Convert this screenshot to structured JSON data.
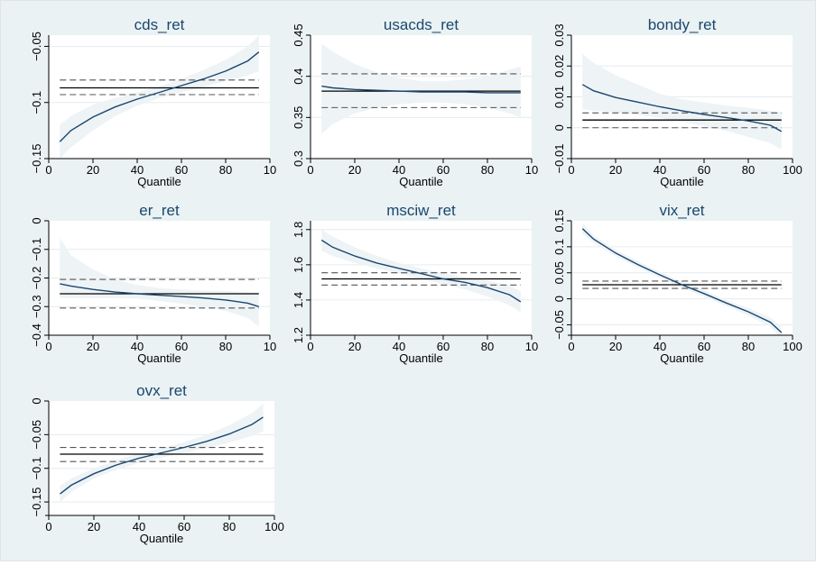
{
  "figure": {
    "x_label": "Quantile",
    "colors": {
      "background": "#eaf2f3",
      "plot_area": "#ffffff",
      "title": "#1a476f",
      "curve": "#1a476f",
      "ci_band": "#eef3f6",
      "ols_line": "#000000",
      "ols_ci": "#555555",
      "grid": "#e6ecef"
    }
  },
  "chart_data": [
    {
      "type": "line",
      "title": "cds_ret",
      "xlabel": "Quantile",
      "x_ticks": [
        "0",
        "20",
        "40",
        "60",
        "80",
        "10"
      ],
      "xlim": [
        0,
        100
      ],
      "y_ticks": [
        "−0.15",
        "−0.1",
        "−0.05"
      ],
      "y_tick_values": [
        -0.15,
        -0.1,
        -0.05
      ],
      "ylim": [
        -0.15,
        -0.04
      ],
      "grid": true,
      "quantile": {
        "x": [
          5,
          10,
          20,
          30,
          40,
          50,
          60,
          70,
          80,
          90,
          95
        ],
        "y": [
          -0.135,
          -0.125,
          -0.113,
          -0.104,
          -0.097,
          -0.091,
          -0.085,
          -0.079,
          -0.072,
          -0.063,
          -0.055
        ]
      },
      "ci_band": {
        "lower": [
          -0.15,
          -0.14,
          -0.125,
          -0.112,
          -0.103,
          -0.096,
          -0.091,
          -0.086,
          -0.081,
          -0.076,
          -0.072
        ],
        "upper": [
          -0.12,
          -0.112,
          -0.102,
          -0.096,
          -0.091,
          -0.086,
          -0.079,
          -0.071,
          -0.062,
          -0.05,
          -0.04
        ]
      },
      "ols": {
        "coef": -0.087,
        "ci": [
          -0.093,
          -0.08
        ]
      }
    },
    {
      "type": "line",
      "title": "usacds_ret",
      "xlabel": "Quantile",
      "x_ticks": [
        "0",
        "20",
        "40",
        "60",
        "80",
        "10"
      ],
      "xlim": [
        0,
        100
      ],
      "y_ticks": [
        "0.3",
        "0.35",
        "0.4",
        "0.45"
      ],
      "y_tick_values": [
        0.3,
        0.35,
        0.4,
        0.45
      ],
      "ylim": [
        0.3,
        0.45
      ],
      "grid": true,
      "quantile": {
        "x": [
          5,
          10,
          20,
          30,
          40,
          50,
          60,
          70,
          80,
          90,
          95
        ],
        "y": [
          0.388,
          0.386,
          0.384,
          0.383,
          0.382,
          0.381,
          0.381,
          0.381,
          0.38,
          0.38,
          0.38
        ]
      },
      "ci_band": {
        "lower": [
          0.33,
          0.342,
          0.355,
          0.362,
          0.366,
          0.368,
          0.368,
          0.366,
          0.362,
          0.355,
          0.35
        ],
        "upper": [
          0.44,
          0.43,
          0.415,
          0.405,
          0.398,
          0.394,
          0.394,
          0.396,
          0.4,
          0.408,
          0.412
        ]
      },
      "ols": {
        "coef": 0.382,
        "ci": [
          0.362,
          0.403
        ]
      }
    },
    {
      "type": "line",
      "title": "bondy_ret",
      "xlabel": "Quantile",
      "x_ticks": [
        "0",
        "20",
        "40",
        "60",
        "80",
        "100"
      ],
      "xlim": [
        0,
        100
      ],
      "y_ticks": [
        "−0.01",
        "0",
        "0.01",
        "0.02",
        "0.03"
      ],
      "y_tick_values": [
        -0.01,
        0,
        0.01,
        0.02,
        0.03
      ],
      "ylim": [
        -0.01,
        0.03
      ],
      "grid": true,
      "quantile": {
        "x": [
          5,
          10,
          20,
          30,
          40,
          50,
          60,
          70,
          80,
          90,
          95
        ],
        "y": [
          0.014,
          0.012,
          0.0098,
          0.0083,
          0.0068,
          0.0055,
          0.0043,
          0.0033,
          0.0022,
          0.0008,
          -0.0012
        ]
      },
      "ci_band": {
        "lower": [
          0.006,
          0.0055,
          0.005,
          0.0042,
          0.0032,
          0.002,
          0.0005,
          -0.001,
          -0.003,
          -0.005,
          -0.007
        ],
        "upper": [
          0.024,
          0.021,
          0.017,
          0.014,
          0.011,
          0.0092,
          0.0082,
          0.0072,
          0.0065,
          0.0055,
          0.005
        ]
      },
      "ols": {
        "coef": 0.0025,
        "ci": [
          0.0,
          0.0048
        ]
      }
    },
    {
      "type": "line",
      "title": "er_ret",
      "xlabel": "Quantile",
      "x_ticks": [
        "0",
        "20",
        "40",
        "60",
        "80",
        "10"
      ],
      "xlim": [
        0,
        100
      ],
      "y_ticks": [
        "−0.4",
        "−0.3",
        "−0.2",
        "−0.1",
        "0"
      ],
      "y_tick_values": [
        -0.4,
        -0.3,
        -0.2,
        -0.1,
        0
      ],
      "ylim": [
        -0.4,
        0
      ],
      "grid": true,
      "quantile": {
        "x": [
          5,
          10,
          20,
          30,
          40,
          50,
          60,
          70,
          80,
          90,
          95
        ],
        "y": [
          -0.22,
          -0.228,
          -0.24,
          -0.249,
          -0.255,
          -0.26,
          -0.265,
          -0.27,
          -0.277,
          -0.288,
          -0.3
        ]
      },
      "ci_band": {
        "lower": [
          -0.27,
          -0.27,
          -0.27,
          -0.27,
          -0.272,
          -0.28,
          -0.29,
          -0.3,
          -0.315,
          -0.34,
          -0.37
        ],
        "upper": [
          -0.06,
          -0.12,
          -0.17,
          -0.205,
          -0.225,
          -0.235,
          -0.24,
          -0.245,
          -0.245,
          -0.25,
          -0.25
        ]
      },
      "ols": {
        "coef": -0.255,
        "ci": [
          -0.305,
          -0.205
        ]
      }
    },
    {
      "type": "line",
      "title": "msciw_ret",
      "xlabel": "Quantile",
      "x_ticks": [
        "0",
        "20",
        "40",
        "60",
        "80",
        "10"
      ],
      "xlim": [
        0,
        100
      ],
      "y_ticks": [
        "1.2",
        "1.4",
        "1.6",
        "1.8"
      ],
      "y_tick_values": [
        1.2,
        1.4,
        1.6,
        1.8
      ],
      "ylim": [
        1.2,
        1.85
      ],
      "grid": true,
      "quantile": {
        "x": [
          5,
          10,
          20,
          30,
          40,
          50,
          60,
          70,
          80,
          90,
          95
        ],
        "y": [
          1.74,
          1.7,
          1.65,
          1.61,
          1.58,
          1.55,
          1.52,
          1.5,
          1.47,
          1.43,
          1.39
        ]
      },
      "ci_band": {
        "lower": [
          1.68,
          1.65,
          1.61,
          1.58,
          1.55,
          1.52,
          1.49,
          1.46,
          1.42,
          1.37,
          1.33
        ],
        "upper": [
          1.8,
          1.76,
          1.7,
          1.65,
          1.61,
          1.58,
          1.55,
          1.53,
          1.51,
          1.48,
          1.45
        ]
      },
      "ols": {
        "coef": 1.52,
        "ci": [
          1.485,
          1.555
        ]
      }
    },
    {
      "type": "line",
      "title": "vix_ret",
      "xlabel": "Quantile",
      "x_ticks": [
        "0",
        "20",
        "40",
        "60",
        "80",
        "100"
      ],
      "xlim": [
        0,
        100
      ],
      "y_ticks": [
        "−0.05",
        "0",
        "0.05",
        "0.1",
        "0.15"
      ],
      "y_tick_values": [
        -0.05,
        0,
        0.05,
        0.1,
        0.15
      ],
      "ylim": [
        -0.07,
        0.15
      ],
      "grid": true,
      "quantile": {
        "x": [
          5,
          10,
          20,
          30,
          40,
          50,
          60,
          70,
          80,
          90,
          95
        ],
        "y": [
          0.135,
          0.115,
          0.088,
          0.066,
          0.046,
          0.027,
          0.01,
          -0.008,
          -0.025,
          -0.045,
          -0.065
        ]
      },
      "ci_band": {
        "lower": [
          0.125,
          0.108,
          0.082,
          0.06,
          0.04,
          0.021,
          0.004,
          -0.014,
          -0.032,
          -0.054,
          -0.076
        ],
        "upper": [
          0.145,
          0.122,
          0.094,
          0.072,
          0.052,
          0.033,
          0.016,
          -0.002,
          -0.018,
          -0.036,
          -0.054
        ]
      },
      "ols": {
        "coef": 0.027,
        "ci": [
          0.02,
          0.034
        ]
      }
    },
    {
      "type": "line",
      "title": "ovx_ret",
      "xlabel": "Quantile",
      "x_ticks": [
        "0",
        "20",
        "40",
        "60",
        "80",
        "100"
      ],
      "xlim": [
        0,
        100
      ],
      "y_ticks": [
        "−0.15",
        "−0.1",
        "−0.05",
        "0"
      ],
      "y_tick_values": [
        -0.15,
        -0.1,
        -0.05,
        0
      ],
      "ylim": [
        -0.17,
        0
      ],
      "grid": true,
      "quantile": {
        "x": [
          5,
          10,
          20,
          30,
          40,
          50,
          60,
          70,
          80,
          90,
          95
        ],
        "y": [
          -0.138,
          -0.125,
          -0.108,
          -0.095,
          -0.085,
          -0.077,
          -0.069,
          -0.06,
          -0.049,
          -0.035,
          -0.024
        ]
      },
      "ci_band": {
        "lower": [
          -0.15,
          -0.135,
          -0.115,
          -0.102,
          -0.092,
          -0.084,
          -0.077,
          -0.07,
          -0.062,
          -0.052,
          -0.045
        ],
        "upper": [
          -0.126,
          -0.115,
          -0.1,
          -0.088,
          -0.078,
          -0.07,
          -0.061,
          -0.05,
          -0.036,
          -0.018,
          -0.004
        ]
      },
      "ols": {
        "coef": -0.079,
        "ci": [
          -0.09,
          -0.069
        ]
      }
    }
  ]
}
